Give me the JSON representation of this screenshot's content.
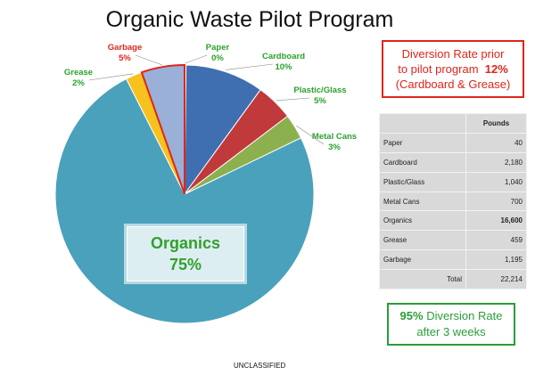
{
  "title": "Organic Waste Pilot Program",
  "chart_data": {
    "type": "pie",
    "title": "Organic Waste Pilot Program",
    "slices": [
      {
        "label": "Paper",
        "pct_label": "0%",
        "value": 40,
        "color": "#c0c0c0",
        "label_color": "#2ca02c"
      },
      {
        "label": "Cardboard",
        "pct_label": "10%",
        "value": 2180,
        "color": "#3f6fb0",
        "label_color": "#2ca02c"
      },
      {
        "label": "Plastic/Glass",
        "pct_label": "5%",
        "value": 1040,
        "color": "#c0393b",
        "label_color": "#2ca02c"
      },
      {
        "label": "Metal Cans",
        "pct_label": "3%",
        "value": 700,
        "color": "#8db04f",
        "label_color": "#2ca02c"
      },
      {
        "label": "Organics",
        "pct_label": "75%",
        "value": 16600,
        "color": "#4aa1bb",
        "label_color": "#33a02c"
      },
      {
        "label": "Grease",
        "pct_label": "2%",
        "value": 459,
        "color": "#f7c21d",
        "label_color": "#2ca02c"
      },
      {
        "label": "Garbage",
        "pct_label": "5%",
        "value": 1195,
        "color": "#9ab0d8",
        "label_color": "#e0251b"
      }
    ]
  },
  "organics_callout": {
    "label": "Organics",
    "pct": "75%"
  },
  "prior_box": {
    "line1": "Diversion Rate prior",
    "line2": "to pilot program",
    "rate": "12%",
    "line3": "(Cardboard & Grease)",
    "color": "#e0251b"
  },
  "table": {
    "header": "Pounds",
    "rows": [
      {
        "label": "Paper",
        "value": "40"
      },
      {
        "label": "Cardboard",
        "value": "2,180"
      },
      {
        "label": "Plastic/Glass",
        "value": "1,040"
      },
      {
        "label": "Metal Cans",
        "value": "700"
      },
      {
        "label": "Organics",
        "value": "16,600",
        "bold": true
      },
      {
        "label": "Grease",
        "value": "459"
      },
      {
        "label": "Garbage",
        "value": "1,195"
      }
    ],
    "total_label": "Total",
    "total_value": "22,214"
  },
  "after_box": {
    "pct": "95%",
    "line1": "Diversion Rate",
    "line2": "after 3 weeks",
    "color": "#2a9d3a"
  },
  "footer": "UNCLASSIFIED"
}
